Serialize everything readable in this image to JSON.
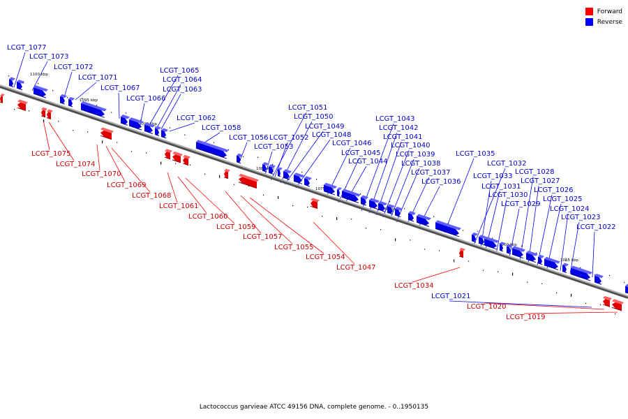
{
  "caption": "Lactococcus garvieae ATCC 49156 DNA, complete genome. - 0..1950135",
  "legend": [
    {
      "label": "Forward",
      "color": "#ff0000"
    },
    {
      "label": "Reverse",
      "color": "#0000ff"
    }
  ],
  "colors": {
    "forward": "#ff0000",
    "reverse": "#0000ff",
    "axis": "#808080",
    "ticks": "#000000"
  },
  "scale_labels": [
    "1100 kbp",
    "1095 kbp",
    "1090 kbp",
    "1085 kbp",
    "1080 kbp",
    "1075 kbp",
    "1070 kbp",
    "1065 kbp",
    "1060 kbp",
    "1055 kbp"
  ],
  "genes_reverse": [
    "LCGT_1077",
    "LCGT_1073",
    "LCGT_1072",
    "LCGT_1071",
    "LCGT_1067",
    "LCGT_1066",
    "LCGT_1065",
    "LCGT_1064",
    "LCGT_1063",
    "LCGT_1062",
    "LCGT_1058",
    "LCGT_1056",
    "LCGT_1053",
    "LCGT_1052",
    "LCGT_1051",
    "LCGT_1050",
    "LCGT_1049",
    "LCGT_1048",
    "LCGT_1046",
    "LCGT_1045",
    "LCGT_1044",
    "LCGT_1043",
    "LCGT_1042",
    "LCGT_1041",
    "LCGT_1040",
    "LCGT_1039",
    "LCGT_1038",
    "LCGT_1037",
    "LCGT_1036",
    "LCGT_1035",
    "LCGT_1032",
    "LCGT_1033",
    "LCGT_1031",
    "LCGT_1030",
    "LCGT_1029",
    "LCGT_1028",
    "LCGT_1027",
    "LCGT_1026",
    "LCGT_1025",
    "LCGT_1024",
    "LCGT_1023",
    "LCGT_1022",
    "LCGT_1021"
  ],
  "genes_forward": [
    "LCGT_1075",
    "LCGT_1074",
    "LCGT_1070",
    "LCGT_1069",
    "LCGT_1068",
    "LCGT_1061",
    "LCGT_1060",
    "LCGT_1059",
    "LCGT_1057",
    "LCGT_1055",
    "LCGT_1054",
    "LCGT_1047",
    "LCGT_1034",
    "LCGT_1020",
    "LCGT_1019"
  ]
}
